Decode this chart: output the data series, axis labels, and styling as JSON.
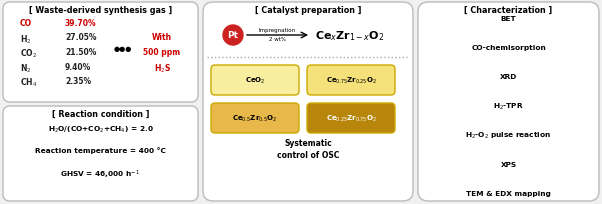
{
  "bg_color": "#f0f0f0",
  "box_bg": "#ffffff",
  "panel1_title": "[ Waste-derived synthesis gas ]",
  "gas_compounds": [
    "CO",
    "H$_2$",
    "CO$_2$",
    "N$_2$",
    "CH$_4$"
  ],
  "gas_values": [
    "39.70%",
    "27.05%",
    "21.50%",
    "9.40%",
    "2.35%"
  ],
  "gas_red": [
    true,
    false,
    false,
    false,
    false
  ],
  "with_label": "With",
  "ppm_label": "500 ppm",
  "h2s_label": "H$_2$S",
  "panel2_title": "[ Reaction condition ]",
  "reaction_lines": [
    "H$_2$O/(CO+CO$_2$+CH$_4$) = 2.0",
    "Reaction temperature = 400 °C",
    "GHSV = 46,000 h$^{-1}$"
  ],
  "panel3_title": "[ Catalyst preparation ]",
  "pt_label": "Pt",
  "catalyst_boxes": [
    {
      "label": "CeO$_2$",
      "color": "#f9eea0",
      "dark": false
    },
    {
      "label": "Ce$_{0.75}$Zr$_{0.25}$O$_2$",
      "color": "#f5e17a",
      "dark": false
    },
    {
      "label": "Ce$_{0.5}$Zr$_{0.5}$O$_2$",
      "color": "#e8b84b",
      "dark": false
    },
    {
      "label": "Ce$_{0.25}$Zr$_{0.75}$O$_2$",
      "color": "#b8860b",
      "dark": true
    }
  ],
  "osc_label": "Systematic\ncontrol of OSC",
  "panel4_title": "[ Characterization ]",
  "char_items": [
    "BET",
    "CO-chemisorption",
    "XRD",
    "H$_2$-TPR",
    "H$_2$-O$_2$ pulse reaction",
    "XPS",
    "TEM & EDX mapping"
  ]
}
